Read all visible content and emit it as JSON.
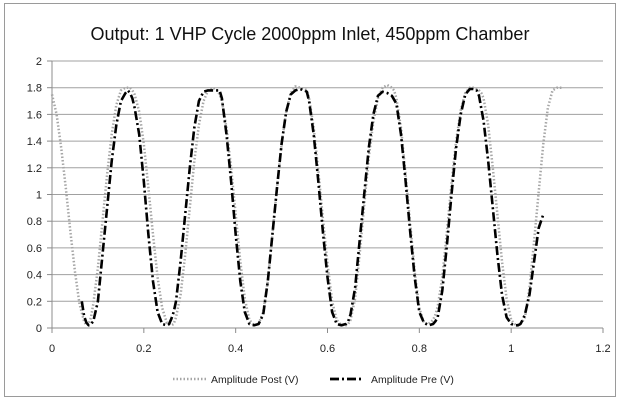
{
  "chart_data": {
    "type": "line",
    "title": "Output: 1 VHP Cycle 2000ppm Inlet, 450ppm Chamber",
    "xlabel": "",
    "ylabel": "",
    "xlim": [
      0,
      1.2
    ],
    "ylim": [
      0,
      2
    ],
    "xticks": [
      0,
      0.2,
      0.4,
      0.6,
      0.8,
      1,
      1.2
    ],
    "xtick_labels": [
      "0",
      "0.2",
      "0.4",
      "0.6",
      "0.8",
      "1",
      "1.2"
    ],
    "yticks": [
      0,
      0.2,
      0.4,
      0.6,
      0.8,
      1,
      1.2,
      1.4,
      1.6,
      1.8,
      2
    ],
    "ytick_labels": [
      "0",
      "0.2",
      "0.4",
      "0.6",
      "0.8",
      "1",
      "1.2",
      "1.4",
      "1.6",
      "1.8",
      "2"
    ],
    "grid": "horizontal",
    "legend_position": "bottom",
    "series": [
      {
        "name": "Amplitude Post (V)",
        "color": "#a6a6a6",
        "dash": "dotted",
        "x": [
          0,
          0.01,
          0.02,
          0.03,
          0.04,
          0.05,
          0.06,
          0.07,
          0.075,
          0.08,
          0.085,
          0.09,
          0.1,
          0.11,
          0.12,
          0.13,
          0.14,
          0.15,
          0.16,
          0.17,
          0.175,
          0.18,
          0.19,
          0.2,
          0.21,
          0.22,
          0.23,
          0.24,
          0.25,
          0.26,
          0.265,
          0.27,
          0.28,
          0.29,
          0.3,
          0.31,
          0.32,
          0.33,
          0.34,
          0.35,
          0.36,
          0.365,
          0.37,
          0.38,
          0.39,
          0.4,
          0.41,
          0.42,
          0.43,
          0.44,
          0.45,
          0.46,
          0.47,
          0.48,
          0.49,
          0.5,
          0.51,
          0.52,
          0.53,
          0.54,
          0.55,
          0.555,
          0.56,
          0.57,
          0.58,
          0.59,
          0.6,
          0.61,
          0.62,
          0.63,
          0.64,
          0.645,
          0.65,
          0.66,
          0.67,
          0.68,
          0.69,
          0.7,
          0.71,
          0.72,
          0.73,
          0.74,
          0.745,
          0.75,
          0.76,
          0.77,
          0.78,
          0.79,
          0.8,
          0.81,
          0.82,
          0.83,
          0.835,
          0.84,
          0.85,
          0.86,
          0.87,
          0.88,
          0.89,
          0.9,
          0.91,
          0.92,
          0.93,
          0.935,
          0.94,
          0.95,
          0.96,
          0.97,
          0.98,
          0.99,
          1.0,
          1.01,
          1.02,
          1.025,
          1.03,
          1.04,
          1.05,
          1.06,
          1.07,
          1.08,
          1.09,
          1.1,
          1.11
        ],
        "values": [
          1.75,
          1.6,
          1.35,
          1.05,
          0.72,
          0.42,
          0.18,
          0.05,
          0.02,
          0.03,
          0.08,
          0.18,
          0.45,
          0.8,
          1.15,
          1.45,
          1.67,
          1.78,
          1.8,
          1.8,
          1.78,
          1.75,
          1.62,
          1.38,
          1.05,
          0.7,
          0.38,
          0.15,
          0.04,
          0.02,
          0.03,
          0.08,
          0.25,
          0.55,
          0.9,
          1.25,
          1.52,
          1.7,
          1.78,
          1.8,
          1.78,
          1.75,
          1.7,
          1.5,
          1.2,
          0.85,
          0.5,
          0.22,
          0.06,
          0.02,
          0.03,
          0.12,
          0.35,
          0.7,
          1.05,
          1.38,
          1.62,
          1.76,
          1.81,
          1.8,
          1.79,
          1.78,
          1.72,
          1.5,
          1.18,
          0.82,
          0.48,
          0.2,
          0.06,
          0.02,
          0.02,
          0.03,
          0.06,
          0.22,
          0.55,
          0.92,
          1.28,
          1.55,
          1.72,
          1.8,
          1.82,
          1.8,
          1.78,
          1.72,
          1.5,
          1.15,
          0.78,
          0.42,
          0.15,
          0.04,
          0.03,
          0.06,
          0.1,
          0.16,
          0.38,
          0.72,
          1.08,
          1.4,
          1.63,
          1.76,
          1.8,
          1.8,
          1.78,
          1.76,
          1.72,
          1.52,
          1.2,
          0.85,
          0.5,
          0.22,
          0.06,
          0.02,
          0.03,
          0.05,
          0.08,
          0.3,
          0.65,
          1.02,
          1.38,
          1.65,
          1.78,
          1.8,
          1.8
        ]
      },
      {
        "name": "Amplitude Pre (V)",
        "color": "#000000",
        "dash": "dash-dot",
        "x": [
          0.065,
          0.07,
          0.075,
          0.08,
          0.085,
          0.09,
          0.1,
          0.11,
          0.12,
          0.13,
          0.14,
          0.15,
          0.16,
          0.165,
          0.17,
          0.175,
          0.18,
          0.19,
          0.2,
          0.21,
          0.22,
          0.23,
          0.24,
          0.25,
          0.255,
          0.26,
          0.265,
          0.27,
          0.28,
          0.29,
          0.3,
          0.31,
          0.32,
          0.33,
          0.34,
          0.35,
          0.36,
          0.365,
          0.37,
          0.38,
          0.39,
          0.4,
          0.41,
          0.42,
          0.43,
          0.44,
          0.45,
          0.46,
          0.47,
          0.48,
          0.49,
          0.5,
          0.51,
          0.52,
          0.53,
          0.54,
          0.55,
          0.555,
          0.56,
          0.57,
          0.58,
          0.59,
          0.6,
          0.61,
          0.62,
          0.63,
          0.64,
          0.645,
          0.65,
          0.66,
          0.67,
          0.68,
          0.69,
          0.7,
          0.71,
          0.72,
          0.73,
          0.74,
          0.75,
          0.76,
          0.77,
          0.78,
          0.79,
          0.8,
          0.81,
          0.82,
          0.83,
          0.835,
          0.84,
          0.85,
          0.86,
          0.87,
          0.88,
          0.89,
          0.9,
          0.91,
          0.92,
          0.925,
          0.93,
          0.94,
          0.95,
          0.96,
          0.97,
          0.98,
          0.99,
          1.0,
          1.01,
          1.015,
          1.02,
          1.025,
          1.03,
          1.04,
          1.05,
          1.06,
          1.07
        ],
        "values": [
          0.2,
          0.09,
          0.04,
          0.02,
          0.03,
          0.05,
          0.2,
          0.55,
          0.9,
          1.25,
          1.52,
          1.7,
          1.76,
          1.78,
          1.76,
          1.72,
          1.65,
          1.45,
          1.1,
          0.7,
          0.35,
          0.12,
          0.03,
          0.02,
          0.03,
          0.07,
          0.12,
          0.2,
          0.5,
          0.85,
          1.2,
          1.5,
          1.7,
          1.77,
          1.78,
          1.78,
          1.78,
          1.78,
          1.72,
          1.45,
          1.1,
          0.7,
          0.35,
          0.12,
          0.03,
          0.02,
          0.03,
          0.1,
          0.35,
          0.7,
          1.05,
          1.38,
          1.62,
          1.75,
          1.78,
          1.79,
          1.78,
          1.77,
          1.7,
          1.45,
          1.1,
          0.72,
          0.38,
          0.12,
          0.03,
          0.02,
          0.03,
          0.05,
          0.1,
          0.3,
          0.65,
          1.0,
          1.35,
          1.6,
          1.74,
          1.77,
          1.76,
          1.74,
          1.68,
          1.45,
          1.1,
          0.72,
          0.38,
          0.12,
          0.04,
          0.02,
          0.03,
          0.05,
          0.08,
          0.28,
          0.62,
          1.0,
          1.35,
          1.6,
          1.75,
          1.79,
          1.79,
          1.78,
          1.74,
          1.55,
          1.25,
          0.9,
          0.55,
          0.25,
          0.08,
          0.03,
          0.02,
          0.02,
          0.03,
          0.06,
          0.1,
          0.25,
          0.5,
          0.75,
          0.85
        ]
      }
    ]
  }
}
